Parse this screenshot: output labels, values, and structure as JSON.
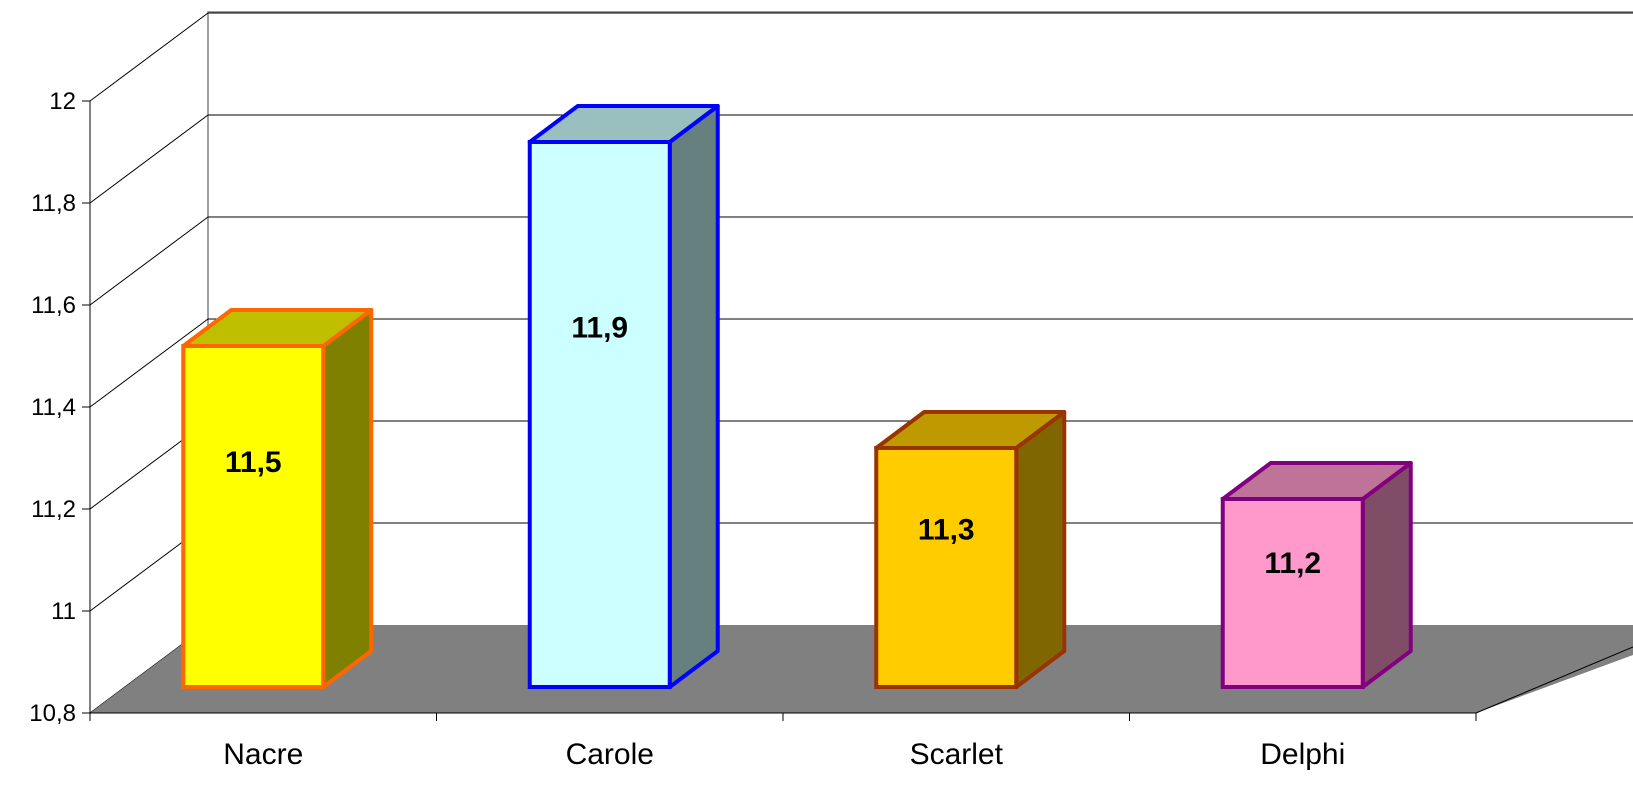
{
  "chart_data": {
    "type": "bar",
    "categories": [
      "Nacre",
      "Carole",
      "Scarlet",
      "Delphi"
    ],
    "values": [
      11.5,
      11.9,
      11.3,
      11.2
    ],
    "value_labels": [
      "11,5",
      "11,9",
      "11,3",
      "11,2"
    ],
    "ylim": [
      10.8,
      12
    ],
    "yticks": [
      10.8,
      11,
      11.2,
      11.4,
      11.6,
      11.8,
      12
    ],
    "ytick_labels": [
      "10,8",
      "11",
      "11,2",
      "11,4",
      "11,6",
      "11,8",
      "12"
    ],
    "grid": true,
    "legend": "none",
    "style": "3d-columns",
    "colors": {
      "wall_line": "#808080",
      "floor": "#808080",
      "bars": [
        {
          "front": "#ffff00",
          "top": "#bfbf00",
          "side": "#808000",
          "edge": "#ff6600"
        },
        {
          "front": "#ccffff",
          "top": "#99bfbf",
          "side": "#668080",
          "edge": "#0000ff"
        },
        {
          "front": "#ffcc00",
          "top": "#bf9900",
          "side": "#806600",
          "edge": "#993300"
        },
        {
          "front": "#ff99cc",
          "top": "#bf7399",
          "side": "#804d66",
          "edge": "#800080"
        }
      ]
    }
  }
}
